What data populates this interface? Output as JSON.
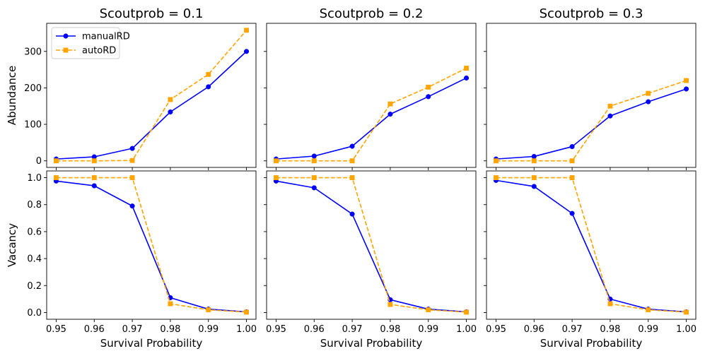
{
  "chart_data": {
    "type": "line",
    "layout": "2x3 grid, shared axes",
    "xlabel": "Survival Probability",
    "x": [
      0.95,
      0.96,
      0.97,
      0.98,
      0.99,
      1.0
    ],
    "x_tick_labels": [
      "0.95",
      "0.96",
      "0.97",
      "0.98",
      "0.99",
      "1.00"
    ],
    "xlim": [
      0.9475,
      1.0025
    ],
    "columns": [
      {
        "title": "Scoutprob = 0.1"
      },
      {
        "title": "Scoutprob = 0.2"
      },
      {
        "title": "Scoutprob = 0.3"
      }
    ],
    "rows": [
      {
        "ylabel": "Abundance",
        "ylim": [
          -18,
          377
        ],
        "y_ticks": [
          0,
          100,
          200,
          300
        ],
        "y_tick_labels": [
          "0",
          "100",
          "200",
          "300"
        ]
      },
      {
        "ylabel": "Vacancy",
        "ylim": [
          -0.05,
          1.05
        ],
        "y_ticks": [
          0.0,
          0.2,
          0.4,
          0.6,
          0.8,
          1.0
        ],
        "y_tick_labels": [
          "0.0",
          "0.2",
          "0.4",
          "0.6",
          "0.8",
          "1.0"
        ]
      }
    ],
    "series_styles": [
      {
        "name": "manualRD",
        "color": "#0000ff",
        "marker": "circle",
        "dash": "solid"
      },
      {
        "name": "autoRD",
        "color": "#ffa500",
        "marker": "square",
        "dash": "dashed"
      }
    ],
    "legend": {
      "location": "upper-left",
      "panel": "Scoutprob = 0.1 / Abundance",
      "entries": [
        "manualRD",
        "autoRD"
      ]
    },
    "panels": [
      {
        "row": 0,
        "col": 0,
        "series": [
          {
            "name": "manualRD",
            "values": [
              5,
              11,
              34,
              134,
              203,
              300
            ]
          },
          {
            "name": "autoRD",
            "values": [
              0,
              0,
              1,
              168,
              237,
              358
            ]
          }
        ]
      },
      {
        "row": 0,
        "col": 1,
        "series": [
          {
            "name": "manualRD",
            "values": [
              5,
              13,
              40,
              128,
              176,
              227
            ]
          },
          {
            "name": "autoRD",
            "values": [
              0,
              0,
              0,
              156,
              202,
              254
            ]
          }
        ]
      },
      {
        "row": 0,
        "col": 2,
        "series": [
          {
            "name": "manualRD",
            "values": [
              5,
              12,
              39,
              123,
              162,
              197
            ]
          },
          {
            "name": "autoRD",
            "values": [
              0,
              0,
              0,
              150,
              185,
              220
            ]
          }
        ]
      },
      {
        "row": 1,
        "col": 0,
        "series": [
          {
            "name": "manualRD",
            "values": [
              0.975,
              0.94,
              0.79,
              0.11,
              0.025,
              0.005
            ]
          },
          {
            "name": "autoRD",
            "values": [
              1.0,
              1.0,
              1.0,
              0.065,
              0.02,
              0.003
            ]
          }
        ]
      },
      {
        "row": 1,
        "col": 1,
        "series": [
          {
            "name": "manualRD",
            "values": [
              0.975,
              0.925,
              0.73,
              0.095,
              0.025,
              0.005
            ]
          },
          {
            "name": "autoRD",
            "values": [
              1.0,
              1.0,
              1.0,
              0.06,
              0.02,
              0.003
            ]
          }
        ]
      },
      {
        "row": 1,
        "col": 2,
        "series": [
          {
            "name": "manualRD",
            "values": [
              0.98,
              0.935,
              0.735,
              0.1,
              0.025,
              0.005
            ]
          },
          {
            "name": "autoRD",
            "values": [
              1.0,
              1.0,
              1.0,
              0.065,
              0.02,
              0.003
            ]
          }
        ]
      }
    ]
  }
}
